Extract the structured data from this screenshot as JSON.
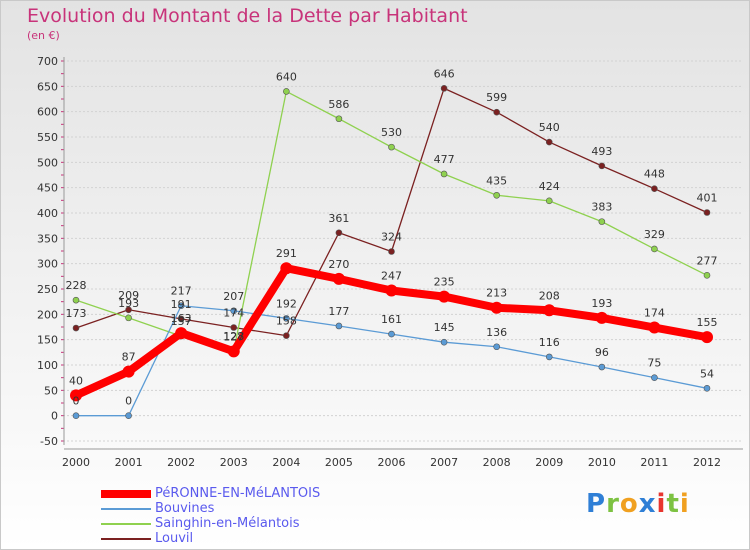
{
  "title": "Evolution du Montant de la Dette par Habitant",
  "subtitle": "(en €)",
  "brand": "Proxiti",
  "chart_data": {
    "type": "line",
    "title": "Evolution du Montant de la Dette par Habitant",
    "ylabel": "(en €)",
    "x": [
      "2000",
      "2001",
      "2002",
      "2003",
      "2004",
      "2005",
      "2006",
      "2007",
      "2008",
      "2009",
      "2010",
      "2011",
      "2012"
    ],
    "ylim": [
      -50,
      700
    ],
    "yticks": [
      -50,
      0,
      50,
      100,
      150,
      200,
      250,
      300,
      350,
      400,
      450,
      500,
      550,
      600,
      650,
      700
    ],
    "grid": "horizontal",
    "legend_position": "bottom-left",
    "series": [
      {
        "name": "PéRONNE-EN-MéLANTOIS",
        "color": "#ff0000",
        "values": [
          40,
          87,
          163,
          127,
          291,
          270,
          247,
          235,
          213,
          208,
          193,
          174,
          155
        ]
      },
      {
        "name": "Bouvines",
        "color": "#5b9bd5",
        "values": [
          0,
          0,
          217,
          207,
          192,
          177,
          161,
          145,
          136,
          116,
          96,
          75,
          54
        ]
      },
      {
        "name": "Sainghin-en-Mélantois",
        "color": "#8fd14f",
        "values": [
          228,
          193,
          157,
          128,
          640,
          586,
          530,
          477,
          435,
          424,
          383,
          329,
          277
        ]
      },
      {
        "name": "Louvil",
        "color": "#7b2121",
        "values": [
          173,
          209,
          191,
          174,
          158,
          361,
          324,
          646,
          599,
          540,
          493,
          448,
          401
        ]
      }
    ]
  }
}
